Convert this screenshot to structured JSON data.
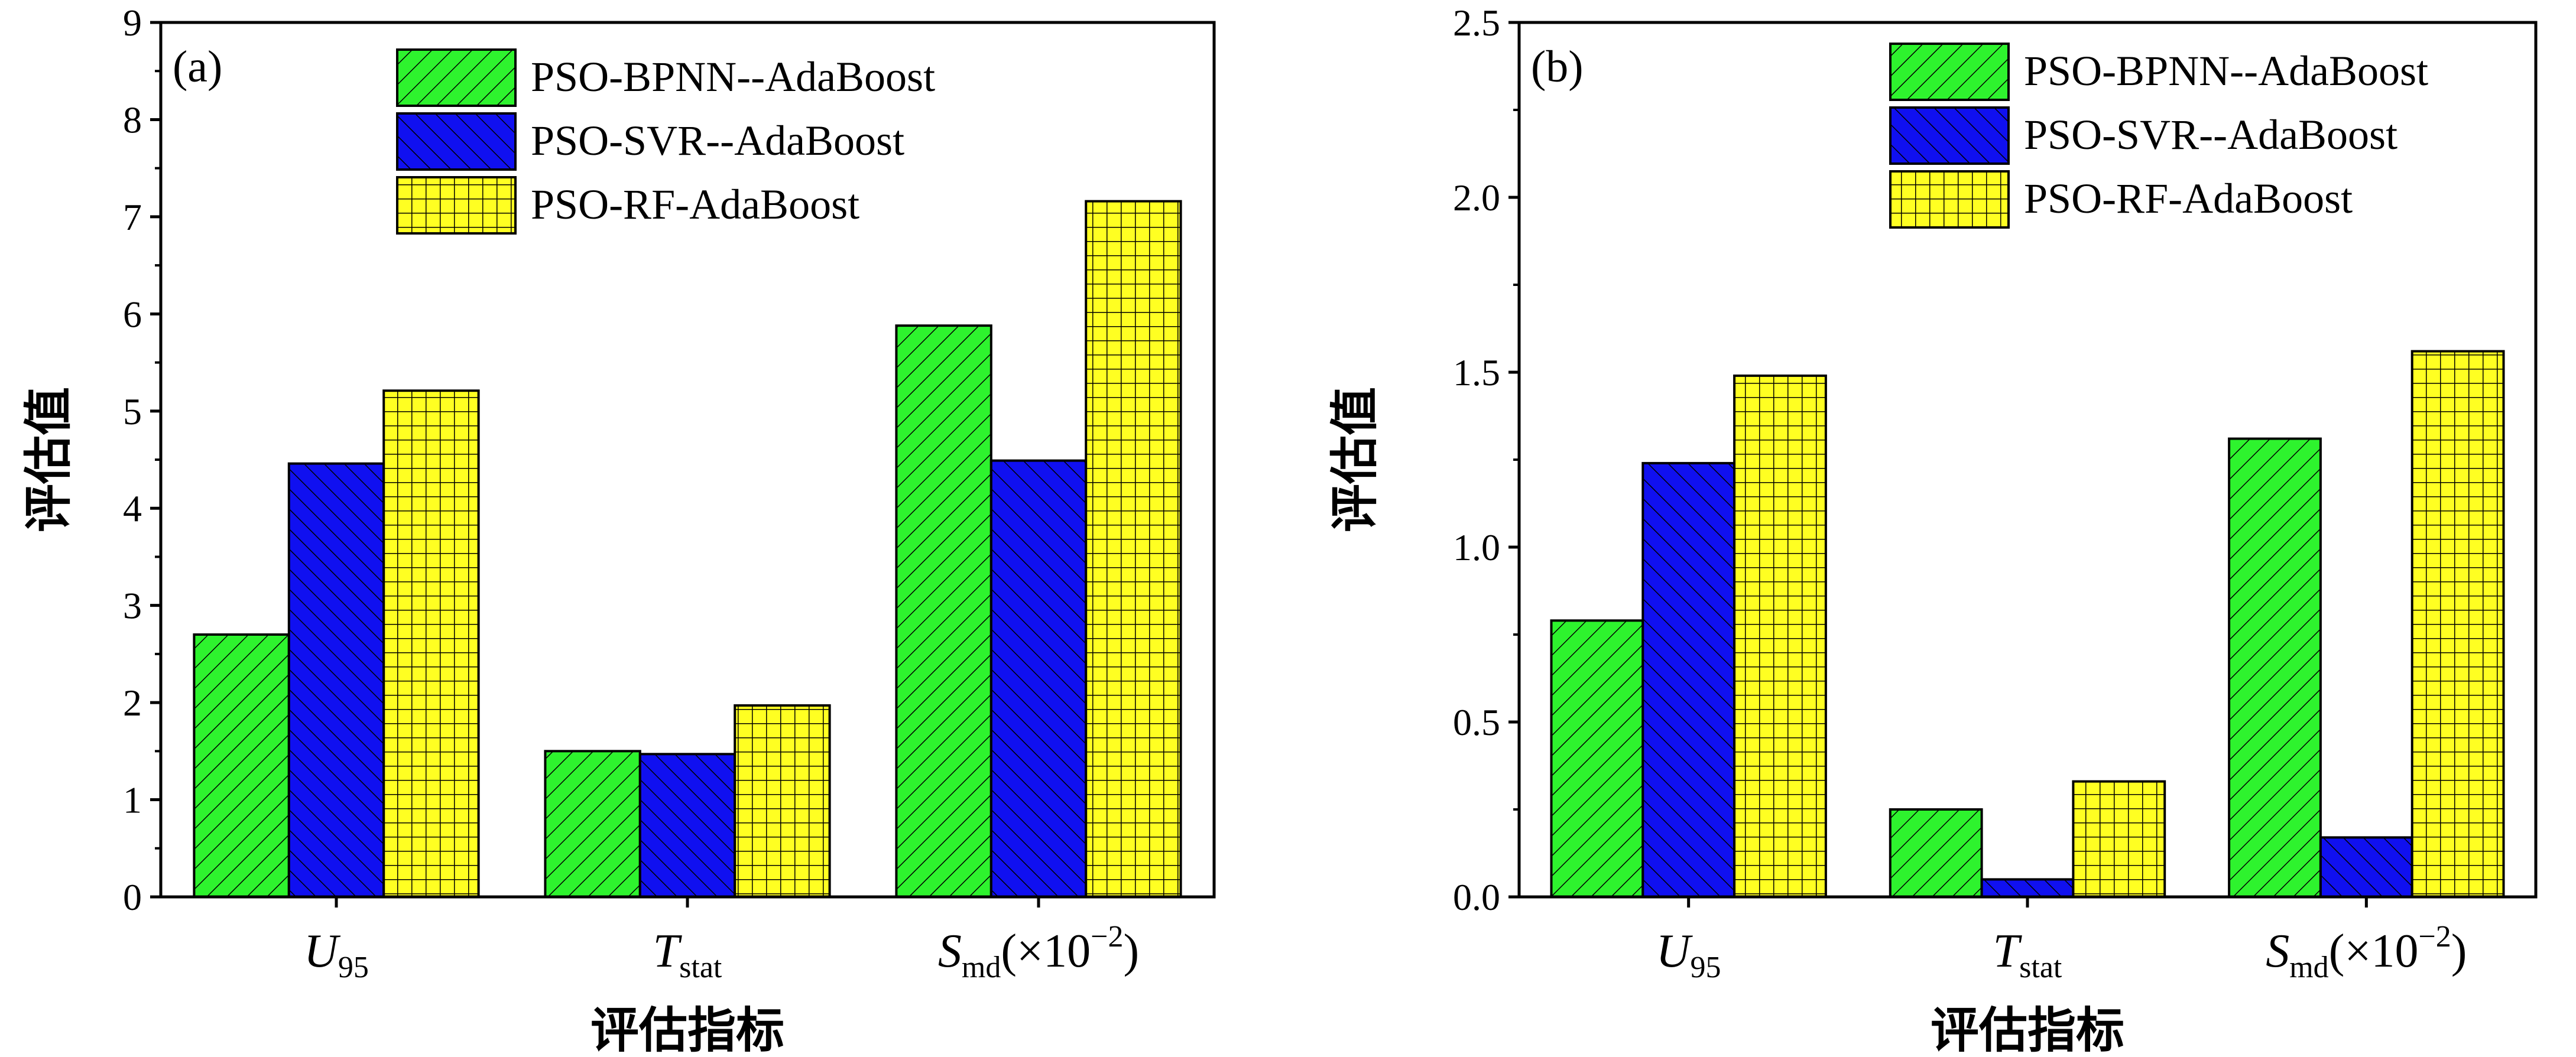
{
  "chart_data": [
    {
      "panel_label": "(a)",
      "type": "bar",
      "categories": [
        "U95",
        "Tstat",
        "Smd(×10−2)"
      ],
      "category_display": [
        {
          "main": "U",
          "sub": "95",
          "suffix": ""
        },
        {
          "main": "T",
          "sub": "stat",
          "suffix": ""
        },
        {
          "main": "S",
          "sub": "md",
          "suffix": "(×10",
          "sup": "−2",
          "close": ")"
        }
      ],
      "series": [
        {
          "name": "PSO-BPNN--AdaBoost",
          "values": [
            2.7,
            1.5,
            5.88
          ]
        },
        {
          "name": "PSO-SVR--AdaBoost",
          "values": [
            4.46,
            1.47,
            4.49
          ]
        },
        {
          "name": "PSO-RF-AdaBoost",
          "values": [
            5.21,
            1.97,
            7.16
          ]
        }
      ],
      "xlabel": "评估指标",
      "ylabel": "评估值",
      "ylim": [
        0,
        9
      ],
      "yticks": [
        0,
        1,
        2,
        3,
        4,
        5,
        6,
        7,
        8,
        9
      ],
      "ytick_labels": [
        "0",
        "1",
        "2",
        "3",
        "4",
        "5",
        "6",
        "7",
        "8",
        "9"
      ],
      "legend_position": "top-right",
      "grid": false
    },
    {
      "panel_label": "(b)",
      "type": "bar",
      "categories": [
        "U95",
        "Tstat",
        "Smd(×10−2)"
      ],
      "category_display": [
        {
          "main": "U",
          "sub": "95",
          "suffix": ""
        },
        {
          "main": "T",
          "sub": "stat",
          "suffix": ""
        },
        {
          "main": "S",
          "sub": "md",
          "suffix": "(×10",
          "sup": "−2",
          "close": ")"
        }
      ],
      "series": [
        {
          "name": "PSO-BPNN--AdaBoost",
          "values": [
            0.79,
            0.25,
            1.31
          ]
        },
        {
          "name": "PSO-SVR--AdaBoost",
          "values": [
            1.24,
            0.05,
            0.17
          ]
        },
        {
          "name": "PSO-RF-AdaBoost",
          "values": [
            1.49,
            0.33,
            1.56
          ]
        }
      ],
      "xlabel": "评估指标",
      "ylabel": "评估值",
      "ylim": [
        0,
        2.5
      ],
      "yticks": [
        0,
        0.5,
        1.0,
        1.5,
        2.0,
        2.5
      ],
      "ytick_labels": [
        "0.0",
        "0.5",
        "1.0",
        "1.5",
        "2.0",
        "2.5"
      ],
      "legend_position": "top-right",
      "grid": false
    }
  ],
  "colors": {
    "series_fill": [
      "#2ef32e",
      "#1010f0",
      "#ffff22"
    ],
    "hatch": "#000000"
  },
  "icons": [
    "diagonal-hatch-pattern",
    "anti-diagonal-hatch-pattern",
    "grid-hatch-pattern"
  ]
}
